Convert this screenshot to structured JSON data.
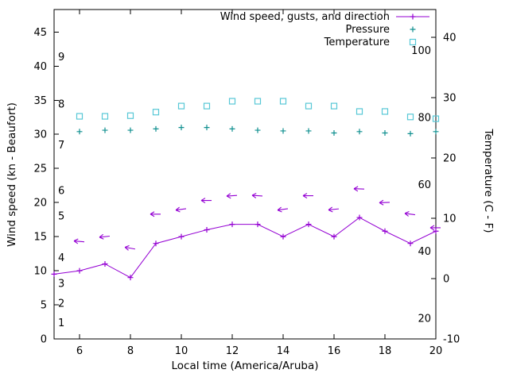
{
  "legend": {
    "items": [
      {
        "label": "Wind speed, gusts, and direction",
        "marker": "line-plus",
        "color": "#9400d3"
      },
      {
        "label": "Pressure",
        "marker": "plus",
        "color": "#0f8f8f"
      },
      {
        "label": "Temperature",
        "marker": "open-square",
        "color": "#57c7d6"
      }
    ]
  },
  "chart_data": {
    "type": "line",
    "title": "",
    "xlabel": "Local time (America/Aruba)",
    "ylabel_left": "Wind speed (kn - Beaufort)",
    "ylabel_right": "Temperature (C - F)",
    "x_range": [
      5,
      20
    ],
    "x_ticks": [
      6,
      8,
      10,
      12,
      14,
      16,
      18,
      20
    ],
    "y_left_range": [
      0,
      48.3
    ],
    "y_left_ticks": [
      0,
      5,
      10,
      15,
      20,
      25,
      30,
      35,
      40,
      45
    ],
    "y_right_range": [
      -10,
      44.6
    ],
    "y_right_ticks": [
      -10,
      0,
      10,
      20,
      30,
      40
    ],
    "beaufort_labels": [
      {
        "label": "1",
        "kn": 2.3
      },
      {
        "label": "2",
        "kn": 5.2
      },
      {
        "label": "3",
        "kn": 8.1
      },
      {
        "label": "4",
        "kn": 11.9
      },
      {
        "label": "5",
        "kn": 18
      },
      {
        "label": "6",
        "kn": 21.7
      },
      {
        "label": "7",
        "kn": 28.4
      },
      {
        "label": "8",
        "kn": 34.4
      },
      {
        "label": "9",
        "kn": 41.3
      }
    ],
    "fahrenheit_labels": [
      20,
      40,
      60,
      80,
      100
    ],
    "series": [
      {
        "id": "wind-speed",
        "name": "Wind speed",
        "style": "line-plus",
        "axis": "left",
        "color": "#9400d3",
        "x": [
          5,
          6,
          7,
          8,
          9,
          10,
          11,
          12,
          13,
          14,
          15,
          16,
          17,
          18,
          19,
          20
        ],
        "values": [
          9.5,
          10,
          11,
          9,
          14,
          15,
          16,
          16.8,
          16.8,
          15,
          16.8,
          15,
          17.8,
          15.8,
          14,
          15.8
        ]
      },
      {
        "id": "wind-gusts",
        "name": "Wind gusts and direction",
        "style": "arrow",
        "axis": "left",
        "color": "#9400d3",
        "x": [
          6,
          7,
          8,
          9,
          10,
          11,
          12,
          13,
          14,
          15,
          16,
          17,
          18,
          19,
          20
        ],
        "values": [
          14.3,
          15,
          13.3,
          18.3,
          19,
          20.3,
          21,
          21,
          19,
          21,
          19,
          22,
          20,
          18.3,
          16.3
        ],
        "angles": [
          185,
          174,
          190,
          180,
          172,
          180,
          176,
          184,
          172,
          180,
          174,
          182,
          178,
          188,
          180
        ]
      },
      {
        "id": "pressure",
        "name": "Pressure",
        "style": "plus",
        "axis": "left",
        "color": "#0f8f8f",
        "x": [
          6,
          7,
          8,
          9,
          10,
          11,
          12,
          13,
          14,
          15,
          16,
          17,
          18,
          19,
          20
        ],
        "values": [
          30.4,
          30.6,
          30.6,
          30.8,
          31,
          31,
          30.8,
          30.6,
          30.5,
          30.5,
          30.2,
          30.4,
          30.2,
          30.1,
          30.4
        ]
      },
      {
        "id": "temperature",
        "name": "Temperature",
        "style": "square",
        "axis": "right",
        "color": "#57c7d6",
        "x": [
          6,
          7,
          8,
          9,
          10,
          11,
          12,
          13,
          14,
          15,
          16,
          17,
          18,
          19,
          20
        ],
        "values": [
          26.9,
          26.9,
          27,
          27.6,
          28.6,
          28.6,
          29.4,
          29.4,
          29.4,
          28.6,
          28.6,
          27.7,
          27.7,
          26.8,
          26.5
        ]
      }
    ]
  }
}
